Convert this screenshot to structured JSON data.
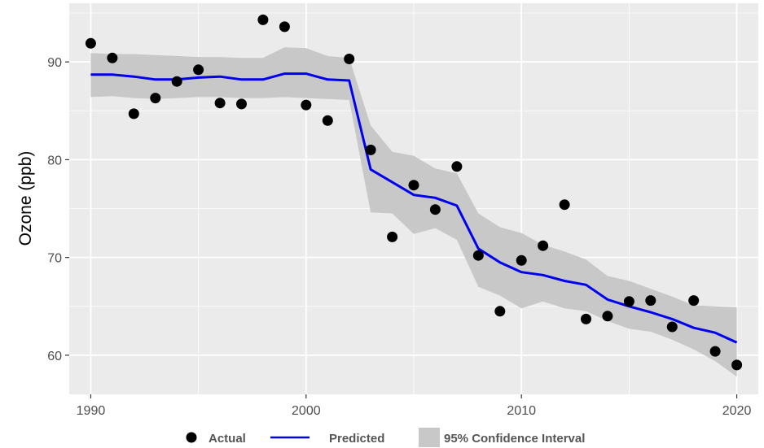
{
  "chart_data": {
    "type": "line",
    "title": "",
    "xlabel": "",
    "ylabel": "Ozone (ppb)",
    "xlim": [
      1989,
      2021
    ],
    "ylim": [
      56,
      96
    ],
    "xticks": [
      1990,
      2000,
      2010,
      2020
    ],
    "yticks": [
      60,
      70,
      80,
      90
    ],
    "grid": true,
    "legend_position": "bottom",
    "colors": {
      "panel_bg": "#ebebeb",
      "grid": "#ffffff",
      "ribbon": "#c8c8c8",
      "line": "#0000ee",
      "points": "#000000"
    },
    "legend": {
      "actual": "Actual",
      "predicted": "Predicted",
      "ci": "95% Confidence Interval"
    },
    "series": [
      {
        "name": "Actual",
        "kind": "points",
        "x": [
          1990,
          1991,
          1992,
          1993,
          1994,
          1995,
          1996,
          1997,
          1998,
          1999,
          2000,
          2001,
          2002,
          2003,
          2004,
          2005,
          2006,
          2007,
          2008,
          2009,
          2010,
          2011,
          2012,
          2013,
          2014,
          2015,
          2016,
          2017,
          2018,
          2019,
          2020
        ],
        "y": [
          91.9,
          90.4,
          84.7,
          86.3,
          88.0,
          89.2,
          85.8,
          85.7,
          94.3,
          93.6,
          85.6,
          84.0,
          90.3,
          81.0,
          72.1,
          77.4,
          74.9,
          79.3,
          70.2,
          64.5,
          69.7,
          71.2,
          75.4,
          63.7,
          64.0,
          65.5,
          65.6,
          62.9,
          65.6,
          60.4,
          59.0
        ]
      },
      {
        "name": "Predicted",
        "kind": "line",
        "x": [
          1990,
          1991,
          1992,
          1993,
          1994,
          1995,
          1996,
          1997,
          1998,
          1999,
          2000,
          2001,
          2002,
          2003,
          2004,
          2005,
          2006,
          2007,
          2008,
          2009,
          2010,
          2011,
          2012,
          2013,
          2014,
          2015,
          2016,
          2017,
          2018,
          2019,
          2020
        ],
        "y": [
          88.7,
          88.7,
          88.5,
          88.2,
          88.2,
          88.4,
          88.5,
          88.2,
          88.2,
          88.8,
          88.8,
          88.2,
          88.1,
          79.0,
          77.7,
          76.4,
          76.1,
          75.3,
          70.9,
          69.5,
          68.5,
          68.2,
          67.6,
          67.2,
          65.7,
          65.0,
          64.4,
          63.7,
          62.8,
          62.3,
          61.3
        ]
      },
      {
        "name": "95% Confidence Interval",
        "kind": "ribbon",
        "x": [
          1990,
          1991,
          1992,
          1993,
          1994,
          1995,
          1996,
          1997,
          1998,
          1999,
          2000,
          2001,
          2002,
          2003,
          2004,
          2005,
          2006,
          2007,
          2008,
          2009,
          2010,
          2011,
          2012,
          2013,
          2014,
          2015,
          2016,
          2017,
          2018,
          2019,
          2020
        ],
        "lower": [
          86.4,
          86.5,
          86.3,
          86.2,
          86.3,
          86.4,
          86.4,
          86.3,
          86.3,
          86.4,
          86.3,
          86.2,
          86.1,
          74.6,
          74.5,
          72.4,
          73.0,
          71.8,
          67.0,
          66.1,
          64.8,
          65.5,
          64.8,
          64.5,
          63.5,
          62.7,
          62.4,
          61.6,
          60.6,
          59.4,
          57.8
        ],
        "upper": [
          90.9,
          90.8,
          90.8,
          90.7,
          90.6,
          90.5,
          90.5,
          90.4,
          90.4,
          91.5,
          91.4,
          90.6,
          90.4,
          83.5,
          80.8,
          80.4,
          79.1,
          78.6,
          74.5,
          73.1,
          72.5,
          71.3,
          70.6,
          69.8,
          68.1,
          67.6,
          66.8,
          66.0,
          65.1,
          65.0,
          64.9
        ]
      }
    ]
  }
}
